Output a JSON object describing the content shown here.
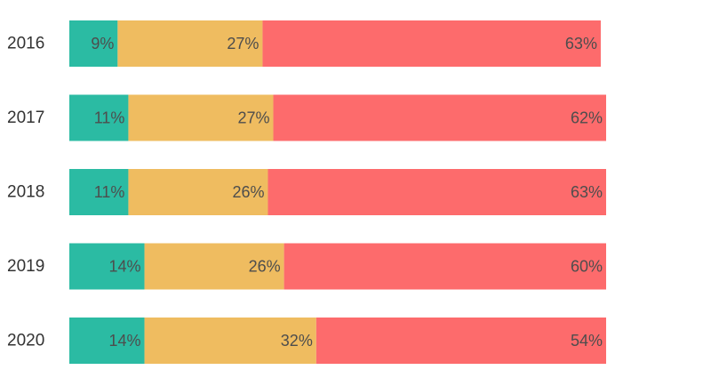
{
  "chart_data": {
    "type": "bar",
    "orientation": "horizontal",
    "stacked": true,
    "categories": [
      "2016",
      "2017",
      "2018",
      "2019",
      "2020"
    ],
    "series": [
      {
        "values": [
          9,
          11,
          11,
          14,
          14
        ],
        "color": "#2bbba3"
      },
      {
        "values": [
          27,
          27,
          26,
          26,
          32
        ],
        "color": "#efbc60"
      },
      {
        "values": [
          63,
          62,
          63,
          60,
          54
        ],
        "color": "#fd6b6c"
      }
    ],
    "value_suffix": "%",
    "title": "",
    "xlabel": "",
    "ylabel": "",
    "grid": false,
    "legend": "none"
  }
}
